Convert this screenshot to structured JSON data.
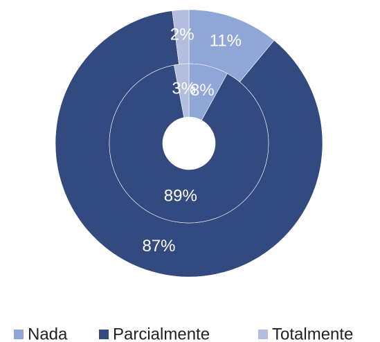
{
  "chart_data": {
    "type": "donut",
    "categories": [
      "Nada",
      "Parcialmente",
      "Totalmente"
    ],
    "colors": [
      "#8fa6d6",
      "#334a80",
      "#b3bede"
    ],
    "series": [
      {
        "values": [
          11,
          87,
          2
        ],
        "value_labels": [
          "11%",
          "87%",
          "2%"
        ]
      },
      {
        "values": [
          8,
          89,
          3
        ],
        "value_labels": [
          "8%",
          "89%",
          "3%"
        ]
      }
    ],
    "legend": "bottom"
  }
}
